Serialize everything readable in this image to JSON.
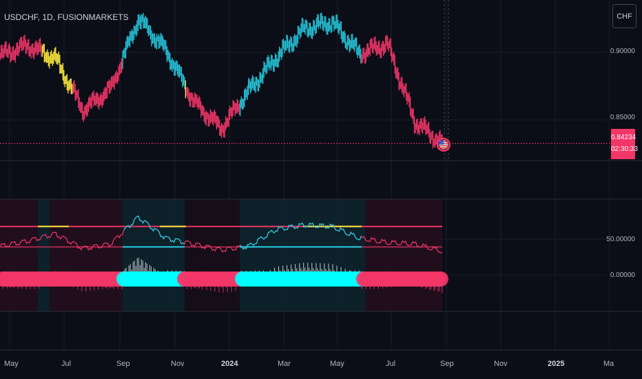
{
  "header": {
    "symbol": "USDCHF, 1D, FUSIONMARKETS",
    "currency_button": "CHF"
  },
  "price_axis": {
    "labels": [
      "0.90000",
      "0.85000"
    ],
    "current_price": "0.84234",
    "countdown": "02:30:33"
  },
  "indicator_axis": {
    "labels": [
      "50.00000",
      "0.00000"
    ]
  },
  "time_axis": {
    "labels": [
      "May",
      "Jul",
      "Sep",
      "Nov",
      "2024",
      "Mar",
      "May",
      "Jul",
      "Sep",
      "Nov",
      "2025",
      "Ma"
    ]
  },
  "colors": {
    "background": "#0b0d17",
    "bear": "#f23668",
    "bull": "#26c6da",
    "neutral": "#ffeb3b",
    "ribbon_bull": "#00ffff",
    "ribbon_bear": "#f23668",
    "grid": "#1b1f2b"
  },
  "icons": {
    "flag": "us-flag-icon"
  },
  "chart_data": [
    {
      "type": "line",
      "title": "USDCHF, 1D, FUSIONMARKETS",
      "xlabel": "",
      "ylabel": "",
      "ylim": [
        0.835,
        0.925
      ],
      "x": [
        "2023-05",
        "2023-06",
        "2023-07",
        "2023-08",
        "2023-09",
        "2023-10",
        "2023-11",
        "2023-12",
        "2024-01",
        "2024-02",
        "2024-03",
        "2024-04",
        "2024-05",
        "2024-06",
        "2024-07",
        "2024-08",
        "2024-09"
      ],
      "series": [
        {
          "values": [
            0.895,
            0.901,
            0.893,
            0.862,
            0.875,
            0.917,
            0.898,
            0.867,
            0.851,
            0.874,
            0.894,
            0.911,
            0.915,
            0.896,
            0.902,
            0.855,
            0.842
          ]
        }
      ]
    },
    {
      "type": "line",
      "title": "",
      "xlabel": "",
      "ylabel": "",
      "ylim": [
        -35,
        100
      ],
      "x": [
        "2023-05",
        "2023-06",
        "2023-07",
        "2023-08",
        "2023-09",
        "2023-10",
        "2023-11",
        "2023-12",
        "2024-01",
        "2024-02",
        "2024-03",
        "2024-04",
        "2024-05",
        "2024-06",
        "2024-07",
        "2024-08",
        "2024-09"
      ],
      "series": [
        {
          "values": [
            45,
            52,
            62,
            42,
            48,
            85,
            56,
            48,
            40,
            45,
            68,
            74,
            72,
            56,
            50,
            48,
            38
          ]
        }
      ]
    }
  ]
}
